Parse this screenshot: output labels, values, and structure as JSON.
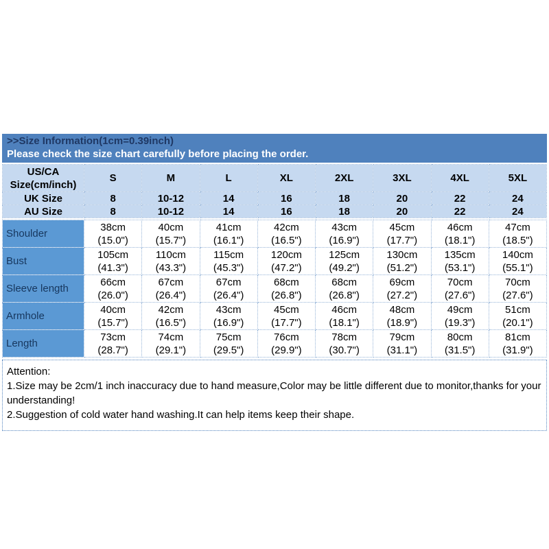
{
  "banner": {
    "title": ">>Size Information(1cm=0.39inch)",
    "subtitle": "Please check the size chart carefully before placing the order."
  },
  "size_chart": {
    "corner_line1": "US/CA",
    "corner_line2": "Size(cm/inch)",
    "sizes": [
      "S",
      "M",
      "L",
      "XL",
      "2XL",
      "3XL",
      "4XL",
      "5XL"
    ],
    "uk": {
      "label": "UK Size",
      "values": [
        "8",
        "10-12",
        "14",
        "16",
        "18",
        "20",
        "22",
        "24"
      ]
    },
    "au": {
      "label": "AU Size",
      "values": [
        "8",
        "10-12",
        "14",
        "16",
        "18",
        "20",
        "22",
        "24"
      ]
    },
    "measurements": [
      {
        "label": "Shoulder",
        "cells": [
          {
            "cm": "38cm",
            "in": "(15.0\")"
          },
          {
            "cm": "40cm",
            "in": "(15.7\")"
          },
          {
            "cm": "41cm",
            "in": "(16.1\")"
          },
          {
            "cm": "42cm",
            "in": "(16.5\")"
          },
          {
            "cm": "43cm",
            "in": "(16.9\")"
          },
          {
            "cm": "45cm",
            "in": "(17.7\")"
          },
          {
            "cm": "46cm",
            "in": "(18.1\")"
          },
          {
            "cm": "47cm",
            "in": "(18.5\")"
          }
        ]
      },
      {
        "label": "Bust",
        "cells": [
          {
            "cm": "105cm",
            "in": "(41.3\")"
          },
          {
            "cm": "110cm",
            "in": "(43.3\")"
          },
          {
            "cm": "115cm",
            "in": "(45.3\")"
          },
          {
            "cm": "120cm",
            "in": "(47.2\")"
          },
          {
            "cm": "125cm",
            "in": "(49.2\")"
          },
          {
            "cm": "130cm",
            "in": "(51.2\")"
          },
          {
            "cm": "135cm",
            "in": "(53.1\")"
          },
          {
            "cm": "140cm",
            "in": "(55.1\")"
          }
        ]
      },
      {
        "label": "Sleeve length",
        "cells": [
          {
            "cm": "66cm",
            "in": "(26.0\")"
          },
          {
            "cm": "67cm",
            "in": "(26.4\")"
          },
          {
            "cm": "67cm",
            "in": "(26.4\")"
          },
          {
            "cm": "68cm",
            "in": "(26.8\")"
          },
          {
            "cm": "68cm",
            "in": "(26.8\")"
          },
          {
            "cm": "69cm",
            "in": "(27.2\")"
          },
          {
            "cm": "70cm",
            "in": "(27.6\")"
          },
          {
            "cm": "70cm",
            "in": "(27.6\")"
          }
        ]
      },
      {
        "label": "Armhole",
        "cells": [
          {
            "cm": "40cm",
            "in": "(15.7\")"
          },
          {
            "cm": "42cm",
            "in": "(16.5\")"
          },
          {
            "cm": "43cm",
            "in": "(16.9\")"
          },
          {
            "cm": "45cm",
            "in": "(17.7\")"
          },
          {
            "cm": "46cm",
            "in": "(18.1\")"
          },
          {
            "cm": "48cm",
            "in": "(18.9\")"
          },
          {
            "cm": "49cm",
            "in": "(19.3\")"
          },
          {
            "cm": "51cm",
            "in": "(20.1\")"
          }
        ]
      },
      {
        "label": "Length",
        "cells": [
          {
            "cm": "73cm",
            "in": "(28.7\")"
          },
          {
            "cm": "74cm",
            "in": "(29.1\")"
          },
          {
            "cm": "75cm",
            "in": "(29.5\")"
          },
          {
            "cm": "76cm",
            "in": "(29.9\")"
          },
          {
            "cm": "78cm",
            "in": "(30.7\")"
          },
          {
            "cm": "79cm",
            "in": "(31.1\")"
          },
          {
            "cm": "80cm",
            "in": "(31.5\")"
          },
          {
            "cm": "81cm",
            "in": "(31.9\")"
          }
        ]
      }
    ]
  },
  "attention": {
    "heading": "Attention:",
    "note1": "1.Size may be 2cm/1 inch inaccuracy due to hand measure,Color may be little different due to monitor,thanks for your understanding!",
    "note2": "2.Suggestion of cold water hand washing.It can help items keep their shape."
  },
  "colors": {
    "banner_bg": "#4f81bd",
    "banner_title_text": "#1f3864",
    "banner_subtitle_text": "#ffffff",
    "header_cell_bg": "#c6d9f0",
    "label_cell_bg": "#5b99d4",
    "label_text": "#17375e",
    "grid_border": "#95b3d7",
    "attention_border": "#4f81bd"
  }
}
